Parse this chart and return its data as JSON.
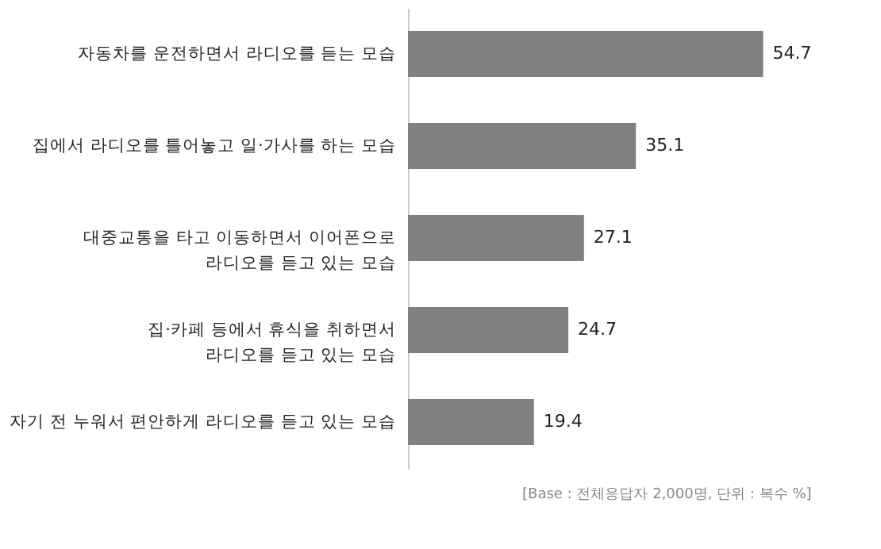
{
  "chart_data": {
    "type": "bar",
    "orientation": "horizontal",
    "categories": [
      "자동차를 운전하면서 라디오를 듣는 모습",
      "집에서 라디오를 틀어놓고 일·가사를 하는 모습",
      "대중교통을 타고 이동하면서 이어폰으로\n라디오를 듣고 있는 모습",
      "집·카페 등에서 휴식을 취하면서\n라디오를 듣고 있는 모습",
      "자기 전 누워서 편안하게 라디오를 듣고 있는 모습"
    ],
    "values": [
      54.7,
      35.1,
      27.1,
      24.7,
      19.4
    ],
    "color": "#808080",
    "data_labels": true,
    "annotations": [
      "[Base : 전체응답자 2,000명, 단위 : 복수 %]"
    ]
  }
}
